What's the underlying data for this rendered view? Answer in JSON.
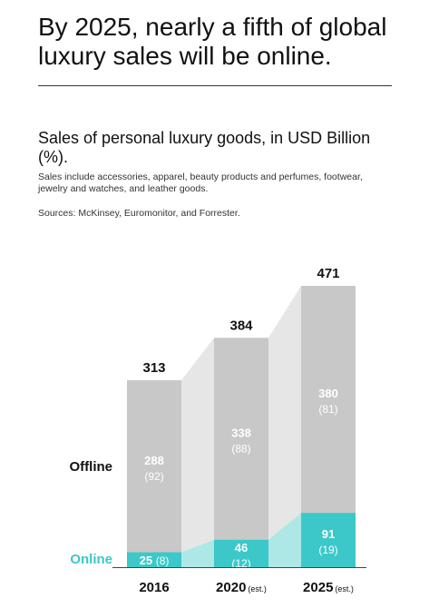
{
  "headline": "By 2025, nearly a fifth of global luxury sales will be online.",
  "subtitle": "Sales of personal luxury goods, in USD Billion (%).",
  "note": "Sales include accessories, apparel, beauty products and perfumes, footwear, jewelry and watches, and leather goods.",
  "source": "Sources: McKinsey, Euromonitor, and Forrester.",
  "colors": {
    "offline_bar": "#c8c8c8",
    "offline_band": "#e6e6e6",
    "online_bar": "#3cc8c8",
    "online_band": "#aee8e6",
    "online_label": "#3cc8c8",
    "axis": "#444444"
  },
  "chart_data": {
    "type": "bar",
    "stacked": true,
    "categories": [
      "2016",
      "2020",
      "2025"
    ],
    "category_suffix": [
      "",
      "(est.)",
      "(est.)"
    ],
    "totals": [
      313,
      384,
      471
    ],
    "series": [
      {
        "name": "Online",
        "values": [
          25,
          46,
          91
        ],
        "shares": [
          8,
          12,
          19
        ]
      },
      {
        "name": "Offline",
        "values": [
          288,
          338,
          380
        ],
        "shares": [
          92,
          88,
          81
        ]
      }
    ],
    "ylim": [
      0,
      471
    ]
  }
}
